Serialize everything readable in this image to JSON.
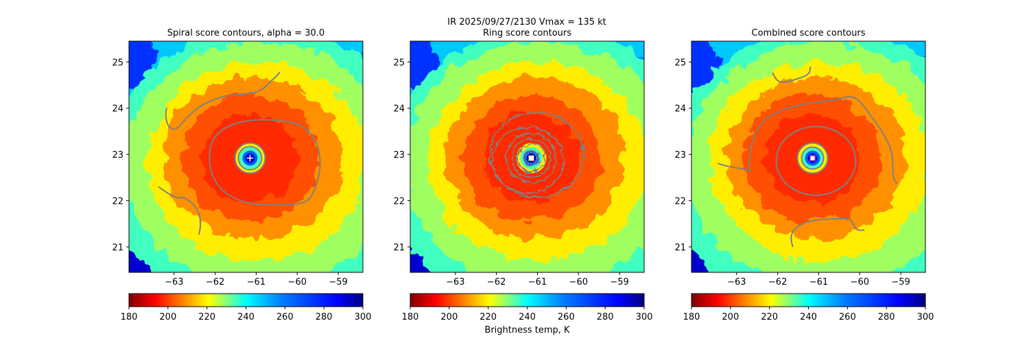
{
  "figure": {
    "suptitle_line1": "IR  2025/09/27/2130    Vmax = 135 kt"
  },
  "colormap": {
    "name": "jet",
    "reversed": true,
    "vmin": 180,
    "vmax": 300,
    "ticks": [
      "180",
      "200",
      "220",
      "240",
      "260",
      "280",
      "300"
    ],
    "label": "Brightness temp, K"
  },
  "contour_color": "#808080",
  "chart_data": [
    {
      "type": "heatmap",
      "title": "Spiral score contours, alpha = 30.0",
      "xlim": [
        -64.1,
        -58.4
      ],
      "ylim": [
        20.45,
        25.45
      ],
      "xticks": [
        "-63",
        "-62",
        "-61",
        "-60",
        "-59"
      ],
      "yticks": [
        "21",
        "22",
        "23",
        "24",
        "25"
      ],
      "storm_center": {
        "lon": -61.15,
        "lat": 22.92
      },
      "center_marker": "plus",
      "colorbar_label": ""
    },
    {
      "type": "heatmap",
      "title": "Ring score contours",
      "xlim": [
        -64.1,
        -58.4
      ],
      "ylim": [
        20.45,
        25.45
      ],
      "xticks": [
        "-63",
        "-62",
        "-61",
        "-60",
        "-59"
      ],
      "yticks": [
        "21",
        "22",
        "23",
        "24",
        "25"
      ],
      "storm_center": {
        "lon": -61.15,
        "lat": 22.92
      },
      "center_marker": "square",
      "colorbar_label": "Brightness temp, K"
    },
    {
      "type": "heatmap",
      "title": "Combined score contours",
      "xlim": [
        -64.1,
        -58.4
      ],
      "ylim": [
        20.45,
        25.45
      ],
      "xticks": [
        "-63",
        "-62",
        "-61",
        "-60",
        "-59"
      ],
      "yticks": [
        "21",
        "22",
        "23",
        "24",
        "25"
      ],
      "storm_center": {
        "lon": -61.15,
        "lat": 22.92
      },
      "center_marker": "square-purple",
      "colorbar_label": ""
    }
  ]
}
